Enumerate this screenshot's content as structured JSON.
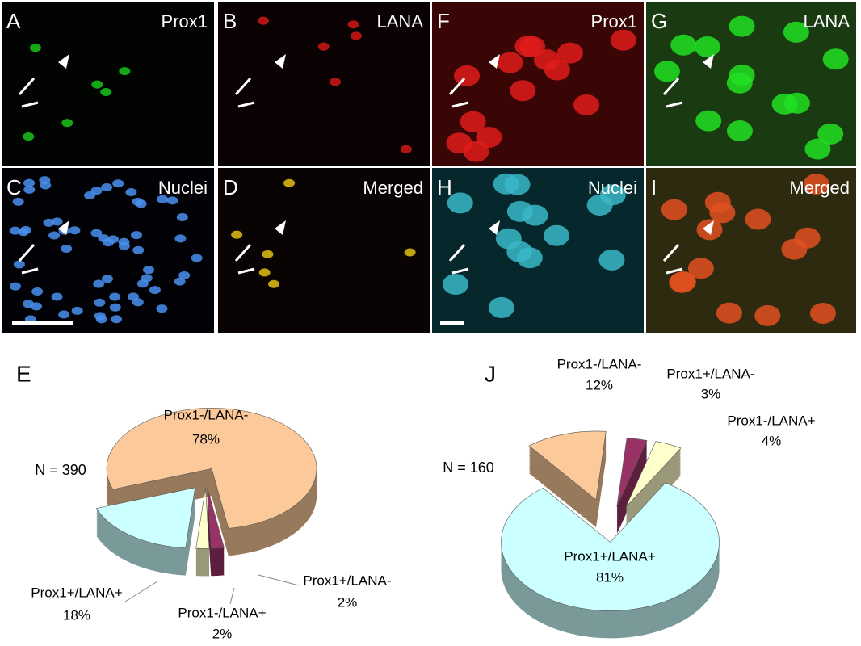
{
  "panels": [
    {
      "letter": "A",
      "label": "Prox1"
    },
    {
      "letter": "B",
      "label": "LANA"
    },
    {
      "letter": "F",
      "label": "Prox1"
    },
    {
      "letter": "G",
      "label": "LANA"
    },
    {
      "letter": "C",
      "label": "Nuclei"
    },
    {
      "letter": "D",
      "label": "Merged"
    },
    {
      "letter": "H",
      "label": "Nuclei"
    },
    {
      "letter": "I",
      "label": "Merged"
    }
  ],
  "chart_data": [
    {
      "type": "pie",
      "title": "E",
      "annotation": "N = 390",
      "categories": [
        "Prox1-/LANA-",
        "Prox1+/LANA-",
        "Prox1-/LANA+",
        "Prox1+/LANA+"
      ],
      "values": [
        78,
        2,
        2,
        18
      ],
      "value_labels": [
        "78%",
        "2%",
        "2%",
        "18%"
      ],
      "colors": [
        "#fcc99a",
        "#993366",
        "#ffffcc",
        "#ccffff"
      ]
    },
    {
      "type": "pie",
      "title": "J",
      "annotation": "N = 160",
      "categories": [
        "Prox1-/LANA-",
        "Prox1+/LANA-",
        "Prox1-/LANA+",
        "Prox1+/LANA+"
      ],
      "values": [
        12,
        3,
        4,
        81
      ],
      "value_labels": [
        "12%",
        "3%",
        "4%",
        "81%"
      ],
      "colors": [
        "#fcc99a",
        "#993366",
        "#ffffcc",
        "#ccffff"
      ]
    }
  ]
}
